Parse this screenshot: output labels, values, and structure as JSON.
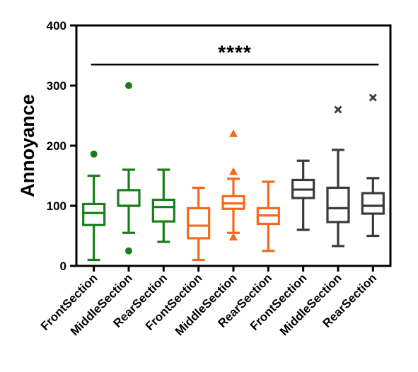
{
  "chart_data": {
    "type": "boxplot",
    "title": "",
    "xlabel": "",
    "ylabel": "Annoyance",
    "ylim": [
      0,
      400
    ],
    "yticks": [
      0,
      100,
      200,
      300,
      400
    ],
    "grid": false,
    "legend": "none",
    "categories": [
      "FrontSection",
      "MiddleSection",
      "RearSection",
      "FrontSection",
      "MiddleSection",
      "RearSection",
      "FrontSection",
      "MiddleSection",
      "RearSection"
    ],
    "groups": [
      {
        "color": "#1a7d1a",
        "outlier_marker": "circle",
        "indices": [
          0,
          1,
          2
        ]
      },
      {
        "color": "#f26b1d",
        "outlier_marker": "triangle",
        "indices": [
          3,
          4,
          5
        ]
      },
      {
        "color": "#3a3a3a",
        "outlier_marker": "cross",
        "indices": [
          6,
          7,
          8
        ]
      }
    ],
    "boxes": [
      {
        "whisker_low": 10,
        "q1": 68,
        "median": 88,
        "q3": 103,
        "whisker_high": 150,
        "outliers": [
          186
        ]
      },
      {
        "whisker_low": 55,
        "q1": 100,
        "median": 100,
        "q3": 126,
        "whisker_high": 160,
        "outliers": [
          300,
          25
        ]
      },
      {
        "whisker_low": 40,
        "q1": 74,
        "median": 98,
        "q3": 110,
        "whisker_high": 160,
        "outliers": []
      },
      {
        "whisker_low": 10,
        "q1": 46,
        "median": 67,
        "q3": 96,
        "whisker_high": 130,
        "outliers": []
      },
      {
        "whisker_low": 55,
        "q1": 95,
        "median": 104,
        "q3": 116,
        "whisker_high": 145,
        "outliers": [
          220,
          157,
          48
        ]
      },
      {
        "whisker_low": 25,
        "q1": 70,
        "median": 84,
        "q3": 96,
        "whisker_high": 140,
        "outliers": []
      },
      {
        "whisker_low": 60,
        "q1": 113,
        "median": 127,
        "q3": 143,
        "whisker_high": 175,
        "outliers": []
      },
      {
        "whisker_low": 33,
        "q1": 73,
        "median": 96,
        "q3": 130,
        "whisker_high": 193,
        "outliers": [
          260
        ]
      },
      {
        "whisker_low": 50,
        "q1": 87,
        "median": 100,
        "q3": 121,
        "whisker_high": 146,
        "outliers": [
          280
        ]
      }
    ],
    "significance": {
      "label": "****",
      "y": 335,
      "from_index": 0,
      "to_index": 8
    }
  }
}
